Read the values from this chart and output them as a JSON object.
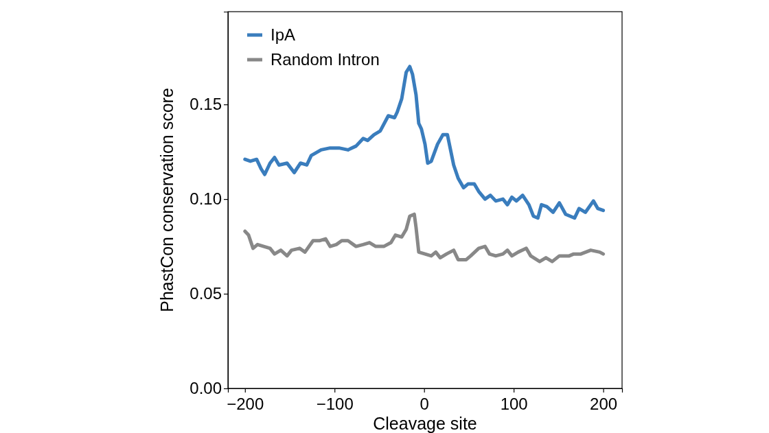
{
  "chart_data": {
    "type": "line",
    "xlabel": "Cleavage site",
    "ylabel": "PhastCon conservation score",
    "xlim": [
      -219,
      221
    ],
    "ylim": [
      0,
      0.199
    ],
    "xticks": [
      {
        "value": -200,
        "label": "−200"
      },
      {
        "value": -100,
        "label": "−100"
      },
      0,
      100,
      200
    ],
    "yticks": [
      {
        "value": 0,
        "label": "0.00"
      },
      {
        "value": 0.05,
        "label": "0.05"
      },
      {
        "value": 0.1,
        "label": "0.10"
      },
      {
        "value": 0.15,
        "label": "0.15"
      }
    ],
    "grid": false,
    "legend": "top left",
    "marker": "none",
    "line_style": "solid",
    "series": [
      {
        "name": "IpA",
        "color": "#3a7dbd",
        "x": [
          -200,
          -194,
          -187,
          -182,
          -178,
          -172,
          -167,
          -162,
          -153,
          -145,
          -138,
          -131,
          -126,
          -115,
          -105,
          -95,
          -85,
          -76,
          -68,
          -63,
          -56,
          -49,
          -40,
          -33,
          -30,
          -25,
          -20,
          -16,
          -13,
          -9,
          -6,
          -3,
          1,
          4,
          8,
          15,
          21,
          26,
          33,
          38,
          44,
          49,
          56,
          61,
          68,
          74,
          80,
          88,
          93,
          98,
          103,
          110,
          117,
          122,
          127,
          131,
          137,
          144,
          151,
          158,
          163,
          168,
          173,
          180,
          189,
          194,
          200
        ],
        "values": [
          0.121,
          0.12,
          0.121,
          0.116,
          0.113,
          0.119,
          0.122,
          0.118,
          0.119,
          0.114,
          0.119,
          0.118,
          0.123,
          0.126,
          0.127,
          0.127,
          0.126,
          0.128,
          0.132,
          0.131,
          0.134,
          0.136,
          0.144,
          0.143,
          0.146,
          0.153,
          0.167,
          0.17,
          0.166,
          0.155,
          0.14,
          0.137,
          0.129,
          0.119,
          0.12,
          0.129,
          0.134,
          0.134,
          0.118,
          0.111,
          0.106,
          0.108,
          0.108,
          0.104,
          0.1,
          0.102,
          0.099,
          0.1,
          0.097,
          0.101,
          0.099,
          0.102,
          0.097,
          0.091,
          0.09,
          0.097,
          0.096,
          0.093,
          0.098,
          0.092,
          0.091,
          0.09,
          0.095,
          0.093,
          0.099,
          0.095,
          0.094
        ]
      },
      {
        "name": "Random Intron",
        "color": "#888888",
        "x": [
          -200,
          -196,
          -191,
          -186,
          -179,
          -172,
          -167,
          -160,
          -153,
          -148,
          -139,
          -133,
          -124,
          -117,
          -110,
          -105,
          -98,
          -92,
          -85,
          -76,
          -68,
          -61,
          -54,
          -45,
          -37,
          -32,
          -25,
          -20,
          -16,
          -11,
          -9,
          -6,
          1,
          8,
          13,
          18,
          25,
          33,
          38,
          47,
          52,
          61,
          68,
          73,
          80,
          88,
          93,
          98,
          105,
          114,
          119,
          129,
          136,
          143,
          151,
          162,
          167,
          175,
          186,
          196,
          200
        ],
        "values": [
          0.083,
          0.081,
          0.074,
          0.076,
          0.075,
          0.074,
          0.071,
          0.073,
          0.07,
          0.073,
          0.074,
          0.072,
          0.078,
          0.078,
          0.079,
          0.075,
          0.076,
          0.078,
          0.078,
          0.075,
          0.076,
          0.077,
          0.075,
          0.075,
          0.077,
          0.081,
          0.08,
          0.084,
          0.091,
          0.092,
          0.085,
          0.072,
          0.071,
          0.07,
          0.072,
          0.069,
          0.071,
          0.073,
          0.068,
          0.068,
          0.07,
          0.074,
          0.075,
          0.071,
          0.07,
          0.071,
          0.073,
          0.07,
          0.072,
          0.074,
          0.07,
          0.067,
          0.069,
          0.067,
          0.07,
          0.07,
          0.071,
          0.071,
          0.073,
          0.072,
          0.071
        ]
      }
    ]
  }
}
